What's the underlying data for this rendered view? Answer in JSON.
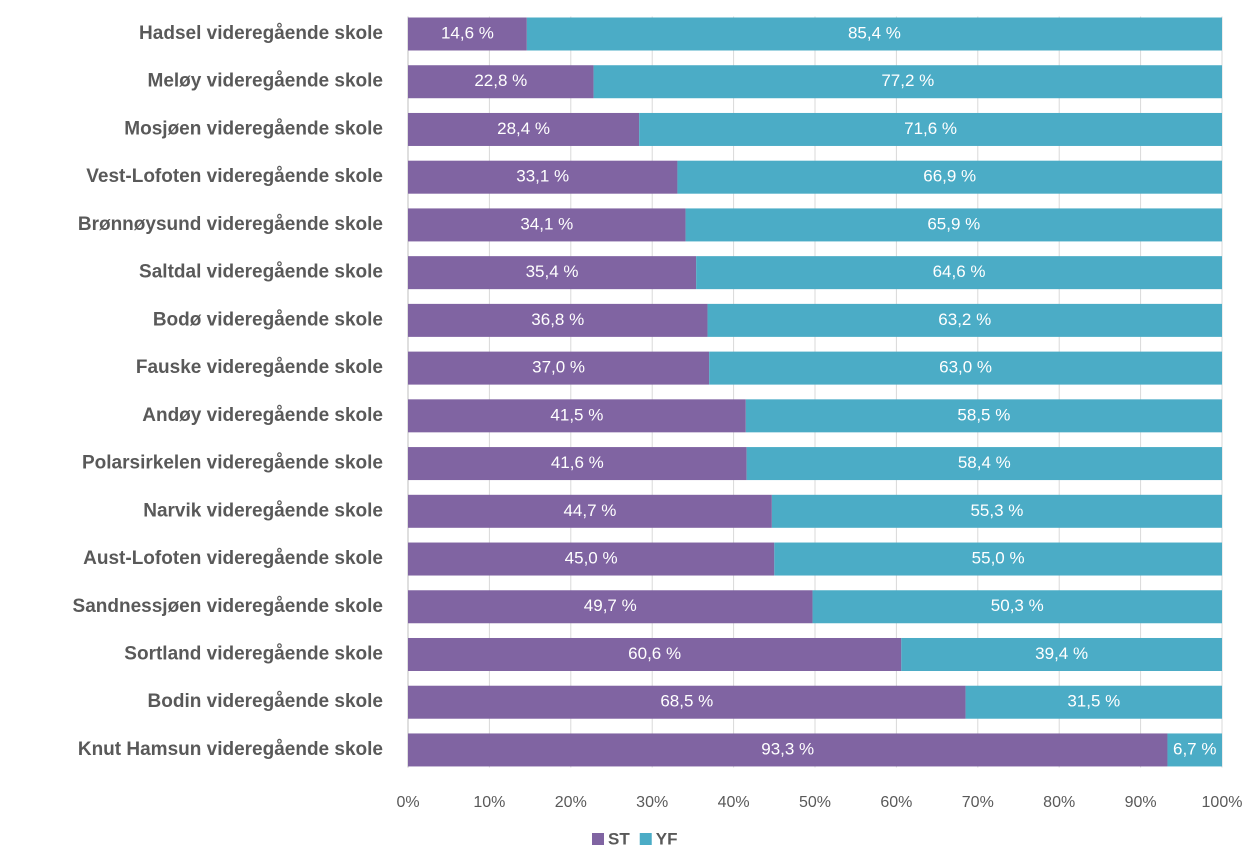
{
  "chart_data": {
    "type": "bar",
    "orientation": "horizontal",
    "stacked": true,
    "categories": [
      "Hadsel videregående skole",
      "Meløy videregående skole",
      "Mosjøen videregående skole",
      "Vest-Lofoten videregående skole",
      "Brønnøysund videregående skole",
      "Saltdal videregående skole",
      "Bodø videregående skole",
      "Fauske videregående skole",
      "Andøy videregående skole",
      "Polarsirkelen videregående skole",
      "Narvik videregående skole",
      "Aust-Lofoten videregående skole",
      "Sandnessjøen videregående skole",
      "Sortland videregående skole",
      "Bodin videregående skole",
      "Knut Hamsun videregående skole"
    ],
    "series": [
      {
        "name": "ST",
        "color": "#8064a2",
        "values": [
          14.6,
          22.8,
          28.4,
          33.1,
          34.1,
          35.4,
          36.8,
          37.0,
          41.5,
          41.6,
          44.7,
          45.0,
          49.7,
          60.6,
          68.5,
          93.3
        ],
        "value_labels": [
          "14,6 %",
          "22,8 %",
          "28,4 %",
          "33,1 %",
          "34,1 %",
          "35,4 %",
          "36,8 %",
          "37,0 %",
          "41,5 %",
          "41,6 %",
          "44,7 %",
          "45,0 %",
          "49,7 %",
          "60,6 %",
          "68,5 %",
          "93,3 %"
        ]
      },
      {
        "name": "YF",
        "color": "#4bacc6",
        "values": [
          85.4,
          77.2,
          71.6,
          66.9,
          65.9,
          64.6,
          63.2,
          63.0,
          58.5,
          58.4,
          55.3,
          55.0,
          50.3,
          39.4,
          31.5,
          6.7
        ],
        "value_labels": [
          "85,4 %",
          "77,2 %",
          "71,6 %",
          "66,9 %",
          "65,9 %",
          "64,6 %",
          "63,2 %",
          "63,0 %",
          "58,5 %",
          "58,4 %",
          "55,3 %",
          "55,0 %",
          "50,3 %",
          "39,4 %",
          "31,5 %",
          "6,7 %"
        ]
      }
    ],
    "xlim": [
      0,
      100
    ],
    "xticks": [
      {
        "value": 0,
        "label": "0%"
      },
      {
        "value": 10,
        "label": "10%"
      },
      {
        "value": 20,
        "label": "20%"
      },
      {
        "value": 30,
        "label": "30%"
      },
      {
        "value": 40,
        "label": "40%"
      },
      {
        "value": 50,
        "label": "50%"
      },
      {
        "value": 60,
        "label": "60%"
      },
      {
        "value": 70,
        "label": "70%"
      },
      {
        "value": 80,
        "label": "80%"
      },
      {
        "value": 90,
        "label": "90%"
      },
      {
        "value": 100,
        "label": "100%"
      }
    ],
    "grid": true,
    "legend": "bottom"
  }
}
